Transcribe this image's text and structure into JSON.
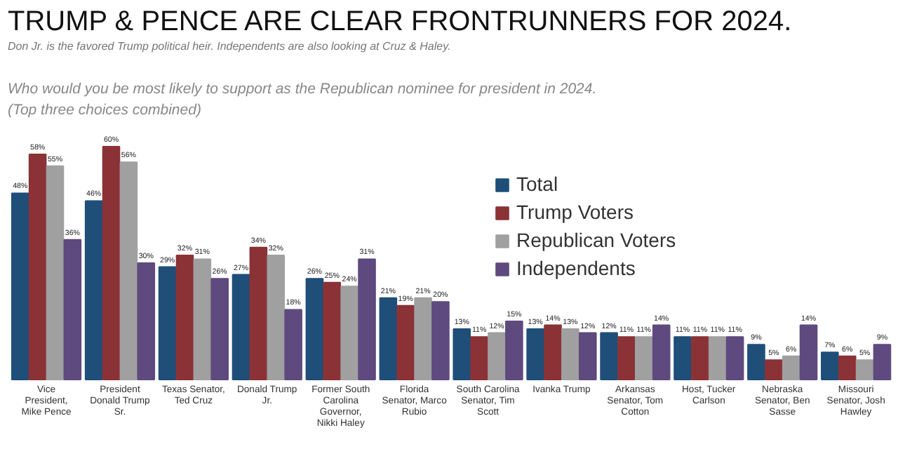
{
  "chart_data": {
    "type": "bar",
    "title": "TRUMP & PENCE ARE CLEAR FRONTRUNNERS FOR 2024.",
    "subtitle": "Don Jr. is the favored Trump political heir.  Independents are also looking at Cruz & Haley.",
    "annotations": [
      "Who would you be most likely to support as the Republican nominee for president in 2024.",
      "(Top three choices combined)"
    ],
    "categories": [
      "Vice President, Mike Pence",
      "President Donald Trump Sr.",
      "Texas Senator, Ted Cruz",
      "Donald Trump Jr.",
      "Former South Carolina Governor, Nikki Haley",
      "Florida Senator, Marco Rubio",
      "South Carolina Senator, Tim Scott",
      "Ivanka Trump",
      "Arkansas Senator, Tom Cotton",
      "Host, Tucker Carlson",
      "Nebraska Senator, Ben Sasse",
      "Missouri Senator, Josh Hawley"
    ],
    "series": [
      {
        "name": "Total",
        "color": "#1f4e79",
        "values": [
          48,
          46,
          29,
          27,
          26,
          21,
          13,
          13,
          12,
          11,
          9,
          7
        ],
        "value_labels": [
          "48%",
          "46%",
          "29%",
          "27%",
          "26%",
          "21%",
          "13%",
          "13%",
          "12%",
          "11%",
          "9%",
          "7%"
        ]
      },
      {
        "name": "Trump Voters",
        "color": "#8b3236",
        "values": [
          58,
          60,
          32,
          34,
          25,
          19,
          11,
          14,
          11,
          11,
          5,
          6
        ],
        "value_labels": [
          "58%",
          "60%",
          "32%",
          "34%",
          "25%",
          "19%",
          "11%",
          "14%",
          "11%",
          "11%",
          "5%",
          "6%"
        ]
      },
      {
        "name": "Republican Voters",
        "color": "#a0a0a0",
        "values": [
          55,
          56,
          31,
          32,
          24,
          21,
          12,
          13,
          11,
          11,
          6,
          5
        ],
        "value_labels": [
          "55%",
          "56%",
          "31%",
          "32%",
          "24%",
          "21%",
          "12%",
          "13%",
          "11%",
          "11%",
          "6%",
          "5%"
        ]
      },
      {
        "name": "Independents",
        "color": "#5e4a7e",
        "values": [
          36,
          30,
          26,
          18,
          31,
          20,
          15,
          12,
          14,
          11,
          14,
          9
        ],
        "value_labels": [
          "36%",
          "30%",
          "26%",
          "18%",
          "31%",
          "20%",
          "15%",
          "12%",
          "14%",
          "11%",
          "14%",
          "9%"
        ]
      }
    ],
    "legend": "top right",
    "grid": false
  }
}
